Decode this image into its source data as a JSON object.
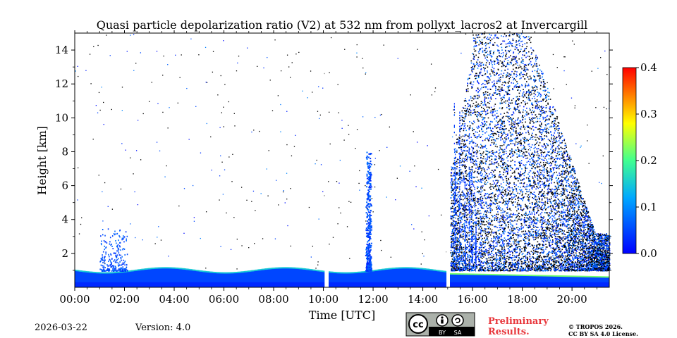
{
  "chart_data": {
    "type": "heatmap",
    "title": "Quasi particle depolarization ratio (V2) at 532 nm from pollyxt_lacros2 at Invercargill",
    "xlabel": "Time [UTC]",
    "ylabel": "Height [km]",
    "xlim_hours": [
      0,
      21.5
    ],
    "ylim_km": [
      0,
      15
    ],
    "x_ticks": [
      "00:00",
      "02:00",
      "04:00",
      "06:00",
      "08:00",
      "10:00",
      "12:00",
      "14:00",
      "16:00",
      "18:00",
      "20:00"
    ],
    "x_tick_hours": [
      0,
      2,
      4,
      6,
      8,
      10,
      12,
      14,
      16,
      18,
      20
    ],
    "y_ticks": [
      2,
      4,
      6,
      8,
      10,
      12,
      14
    ],
    "colorbar": {
      "min": 0.0,
      "max": 0.4,
      "ticks": [
        "0.0",
        "0.1",
        "0.2",
        "0.3",
        "0.4"
      ],
      "colormap": "jet"
    },
    "data_gaps_hours": [
      [
        10.05,
        10.18
      ],
      [
        14.95,
        15.08
      ]
    ],
    "features": [
      {
        "name": "boundary layer",
        "start_hour": 0,
        "end_hour": 21.5,
        "top_km": 1.0,
        "value": 0.05
      },
      {
        "name": "elevated plume",
        "hour": 11.8,
        "top_km": 8.0,
        "value": 0.02
      },
      {
        "name": "cloud/precip field",
        "start_hour": 15.0,
        "end_hour": 21.5,
        "top_km": 15.0,
        "value": 0.01
      }
    ]
  },
  "footer": {
    "date": "2026-03-22",
    "version": "Version: 4.0",
    "license_badge": {
      "cc": "cc",
      "by": "BY",
      "sa": "SA"
    },
    "preliminary": [
      "Preliminary",
      "Results."
    ],
    "copyright": [
      "© TROPOS 2026.",
      "CC BY SA 4.0 License."
    ]
  },
  "colors": {
    "boundary_blue": "#0a3fd8",
    "dark_blue": "#00207f"
  }
}
